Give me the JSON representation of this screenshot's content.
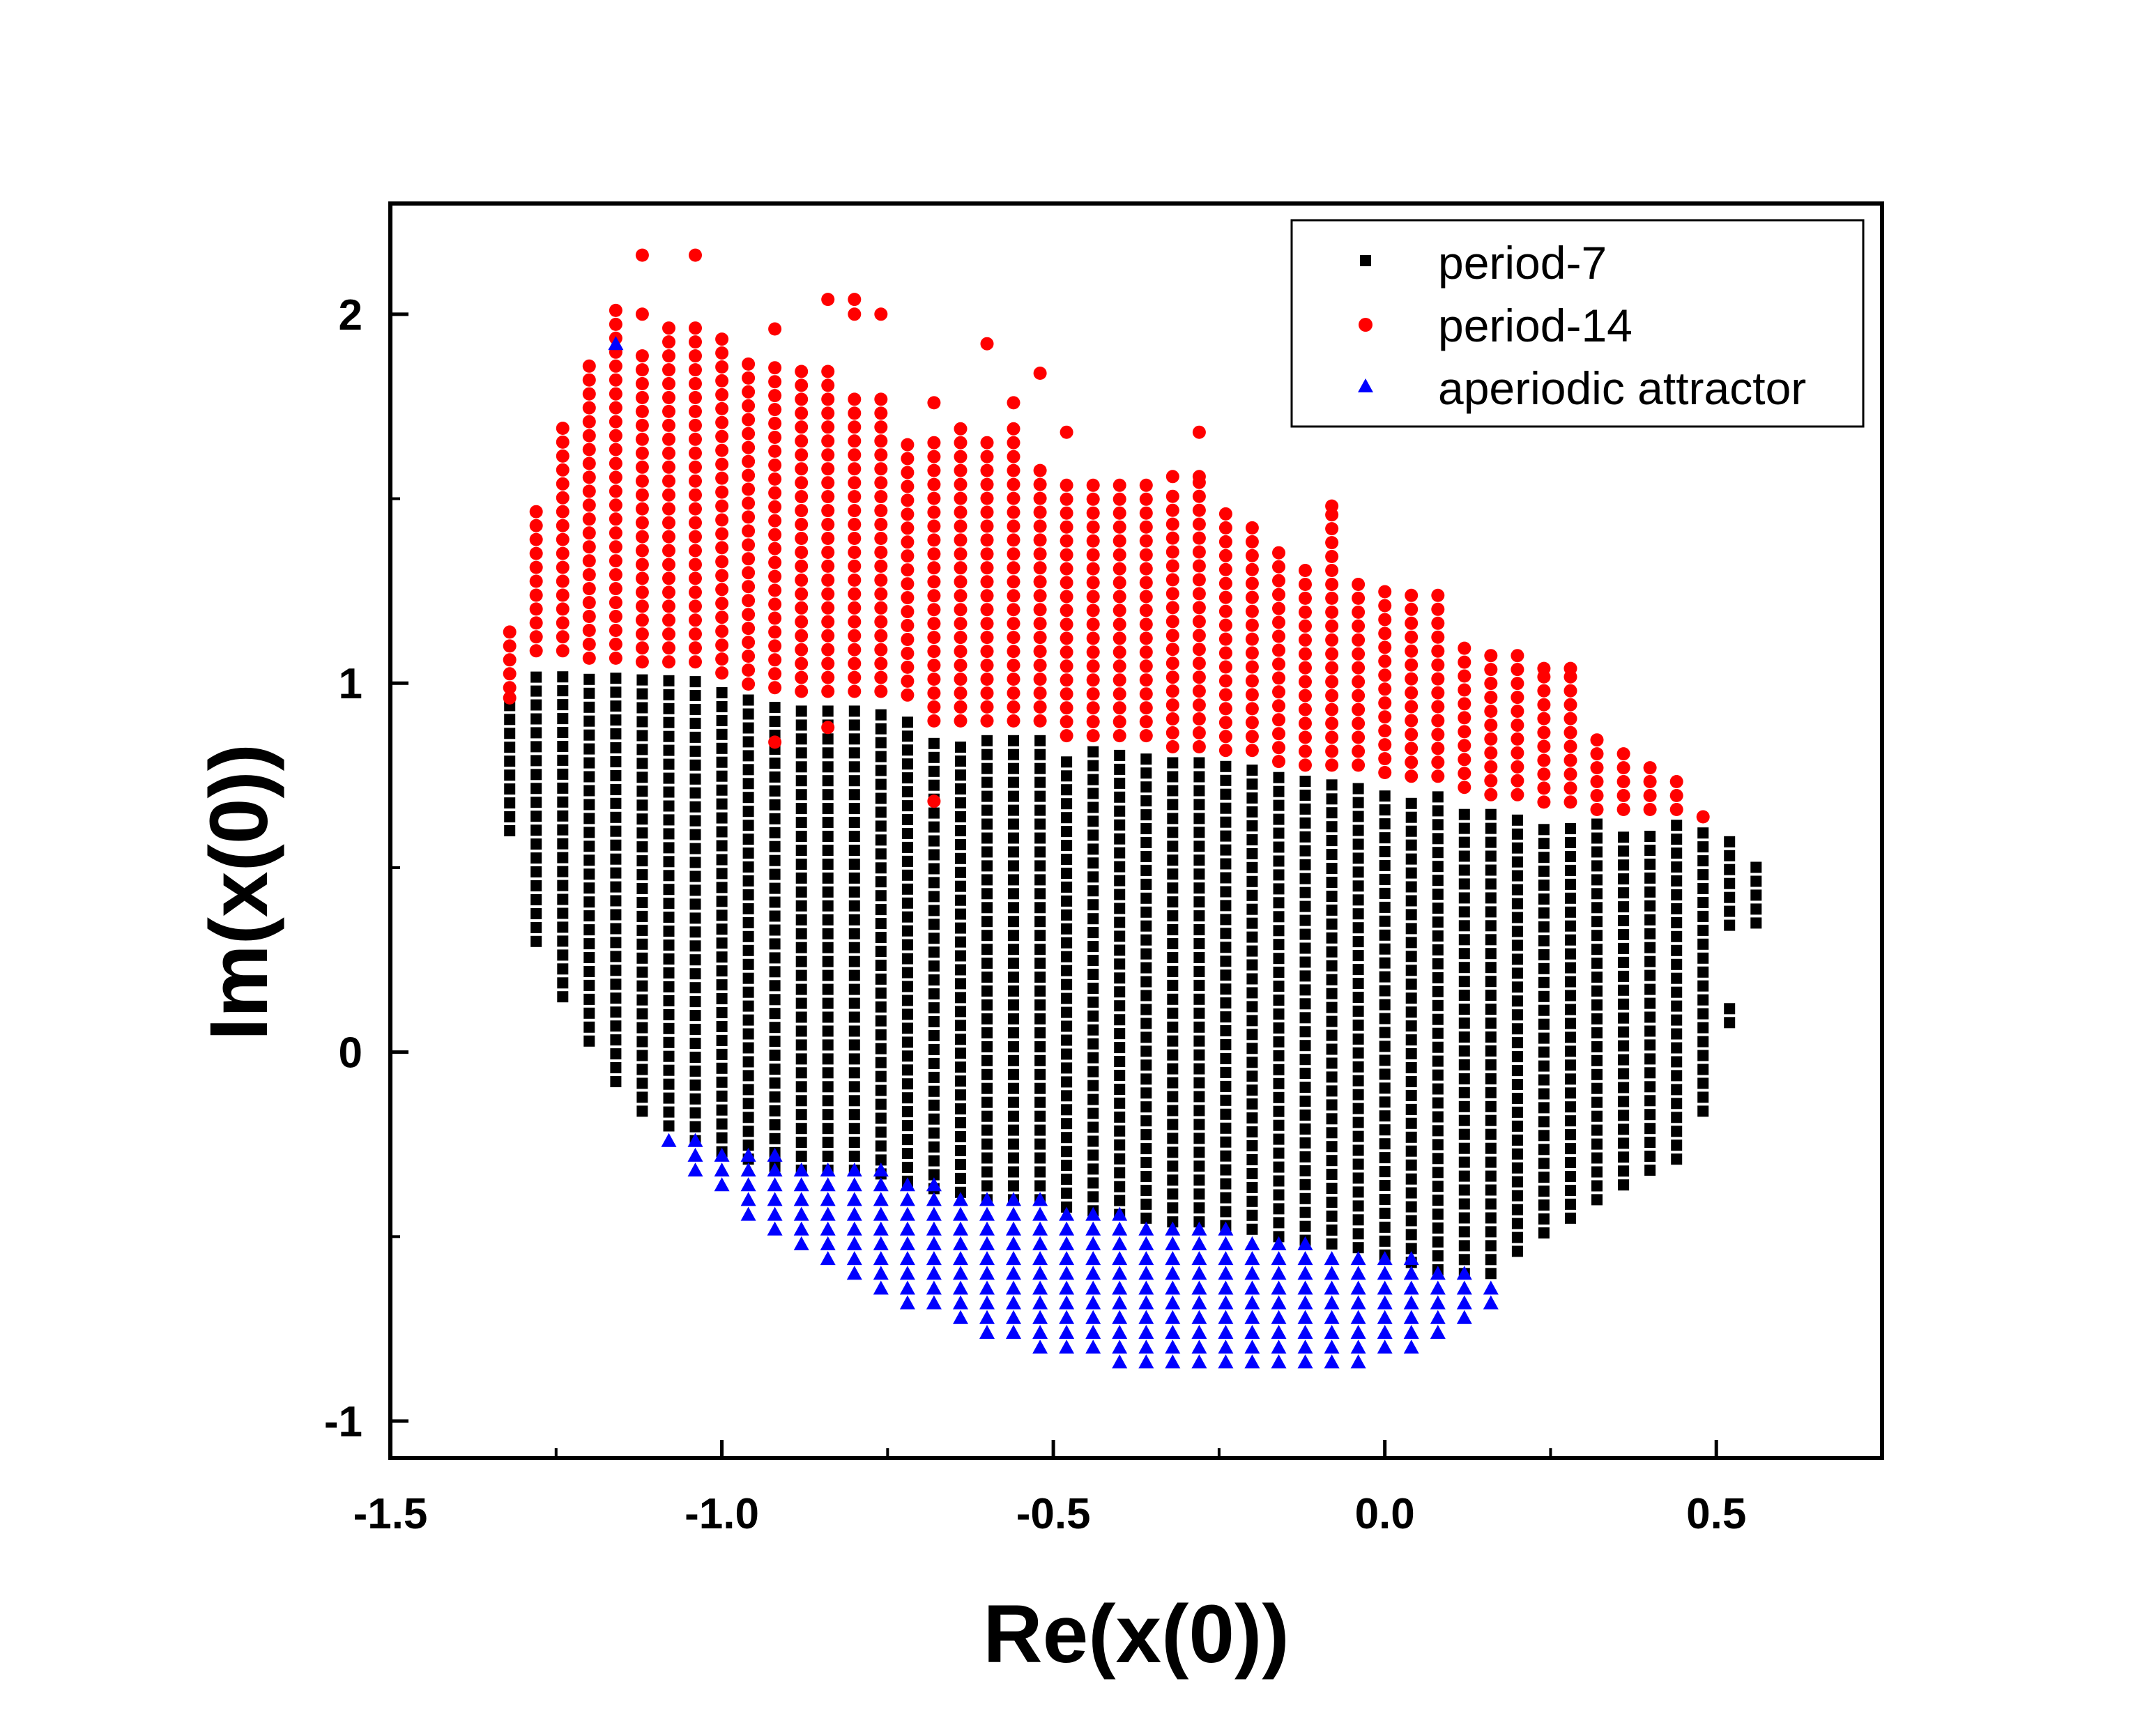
{
  "chart_data": {
    "type": "scatter",
    "title": "",
    "xlabel": "Re(x(0))",
    "ylabel": "Im(x(0))",
    "xlim": [
      -1.5,
      0.75
    ],
    "ylim": [
      -1.1,
      2.3
    ],
    "xticks": [
      -1.5,
      -1.0,
      -0.5,
      0.0,
      0.5
    ],
    "xtick_labels": [
      "-1.5",
      "-1.0",
      "-0.5",
      "0.0",
      "0.5"
    ],
    "yticks": [
      -1,
      0,
      1,
      2
    ],
    "ytick_labels": [
      "-1",
      "0",
      "1",
      "2"
    ],
    "grid": false,
    "legend_position": "top-right",
    "grid_step": {
      "dx": 0.04,
      "dy": 0.0377
    },
    "colors": {
      "period-7": "#000000",
      "period-14": "#ff0000",
      "aperiodic attractor": "#0000ff"
    },
    "series": [
      {
        "name": "period-7",
        "marker": "square"
      },
      {
        "name": "period-14",
        "marker": "circle"
      },
      {
        "name": "aperiodic attractor",
        "marker": "triangle"
      }
    ],
    "columns": [
      [
        -1.32,
        0.6,
        0.95,
        1.17
      ],
      [
        -1.28,
        0.3,
        1.05,
        1.48
      ],
      [
        -1.24,
        0.15,
        1.05,
        1.72
      ],
      [
        -1.2,
        0.03,
        1.03,
        1.88
      ],
      [
        -1.16,
        -0.08,
        1.03,
        2.04
      ],
      [
        -1.12,
        -0.16,
        1.02,
        1.92
      ],
      [
        -1.08,
        -0.2,
        1.02,
        1.97
      ],
      [
        -1.04,
        -0.24,
        1.02,
        1.97
      ],
      [
        -1.0,
        -0.27,
        0.99,
        1.96
      ],
      [
        -0.96,
        -0.29,
        0.96,
        1.88
      ],
      [
        -0.92,
        -0.31,
        0.95,
        1.87
      ],
      [
        -0.88,
        -0.32,
        0.94,
        1.85
      ],
      [
        -0.84,
        -0.32,
        0.94,
        1.88
      ],
      [
        -0.8,
        -0.32,
        0.94,
        1.78
      ],
      [
        -0.76,
        -0.33,
        0.94,
        1.78
      ],
      [
        -0.72,
        -0.35,
        0.93,
        1.68
      ],
      [
        -0.68,
        -0.37,
        0.86,
        1.66
      ],
      [
        -0.64,
        -0.38,
        0.86,
        1.7
      ],
      [
        -0.6,
        -0.4,
        0.86,
        1.66
      ],
      [
        -0.56,
        -0.4,
        0.86,
        1.72
      ],
      [
        -0.52,
        -0.4,
        0.86,
        1.6
      ],
      [
        -0.48,
        -0.42,
        0.82,
        1.57
      ],
      [
        -0.44,
        -0.43,
        0.82,
        1.57
      ],
      [
        -0.4,
        -0.44,
        0.82,
        1.57
      ],
      [
        -0.36,
        -0.45,
        0.82,
        1.57
      ],
      [
        -0.32,
        -0.46,
        0.79,
        1.54
      ],
      [
        -0.28,
        -0.46,
        0.79,
        1.56
      ],
      [
        -0.24,
        -0.47,
        0.78,
        1.46
      ],
      [
        -0.2,
        -0.48,
        0.78,
        1.44
      ],
      [
        -0.16,
        -0.5,
        0.75,
        1.38
      ],
      [
        -0.12,
        -0.51,
        0.74,
        1.34
      ],
      [
        -0.08,
        -0.52,
        0.74,
        1.48
      ],
      [
        -0.04,
        -0.53,
        0.74,
        1.28
      ],
      [
        0.0,
        -0.55,
        0.72,
        1.25
      ],
      [
        0.04,
        -0.57,
        0.71,
        1.25
      ],
      [
        0.08,
        -0.59,
        0.71,
        1.25
      ],
      [
        0.12,
        -0.6,
        0.68,
        1.1
      ],
      [
        0.16,
        -0.6,
        0.66,
        1.1
      ],
      [
        0.2,
        -0.54,
        0.66,
        1.08
      ],
      [
        0.24,
        -0.49,
        0.64,
        1.03
      ],
      [
        0.28,
        -0.45,
        0.64,
        1.04
      ],
      [
        0.32,
        -0.4,
        0.62,
        0.86
      ],
      [
        0.36,
        -0.36,
        0.62,
        0.82
      ],
      [
        0.4,
        -0.32,
        0.62,
        0.78
      ],
      [
        0.44,
        -0.29,
        0.62,
        0.76
      ],
      [
        0.48,
        -0.16,
        0.6,
        0.65
      ],
      [
        0.52,
        0.08,
        0.6,
        0.6
      ],
      [
        0.56,
        0.35,
        0.51,
        0.51
      ]
    ],
    "column_gaps": [
      [
        -1.28,
        0.59,
        0.62
      ],
      [
        0.52,
        0.34,
        0.14
      ]
    ],
    "aperiodic_columns": [
      [
        -1.08,
        -0.24,
        -0.24
      ],
      [
        -1.04,
        -0.32,
        -0.24
      ],
      [
        -1.0,
        -0.36,
        -0.28
      ],
      [
        -0.96,
        -0.44,
        -0.28
      ],
      [
        -0.92,
        -0.48,
        -0.28
      ],
      [
        -0.88,
        -0.52,
        -0.32
      ],
      [
        -0.84,
        -0.56,
        -0.32
      ],
      [
        -0.8,
        -0.6,
        -0.32
      ],
      [
        -0.76,
        -0.64,
        -0.32
      ],
      [
        -0.72,
        -0.68,
        -0.36
      ],
      [
        -0.68,
        -0.68,
        -0.36
      ],
      [
        -0.64,
        -0.72,
        -0.4
      ],
      [
        -0.6,
        -0.76,
        -0.4
      ],
      [
        -0.56,
        -0.76,
        -0.4
      ],
      [
        -0.52,
        -0.8,
        -0.4
      ],
      [
        -0.48,
        -0.8,
        -0.44
      ],
      [
        -0.44,
        -0.8,
        -0.44
      ],
      [
        -0.4,
        -0.84,
        -0.44
      ],
      [
        -0.36,
        -0.84,
        -0.48
      ],
      [
        -0.32,
        -0.84,
        -0.48
      ],
      [
        -0.28,
        -0.84,
        -0.48
      ],
      [
        -0.24,
        -0.84,
        -0.48
      ],
      [
        -0.2,
        -0.84,
        -0.52
      ],
      [
        -0.16,
        -0.84,
        -0.52
      ],
      [
        -0.12,
        -0.84,
        -0.52
      ],
      [
        -0.08,
        -0.84,
        -0.56
      ],
      [
        -0.04,
        -0.84,
        -0.56
      ],
      [
        0.0,
        -0.8,
        -0.56
      ],
      [
        0.04,
        -0.8,
        -0.56
      ],
      [
        0.08,
        -0.76,
        -0.6
      ],
      [
        0.12,
        -0.72,
        -0.6
      ],
      [
        0.16,
        -0.68,
        -0.64
      ]
    ],
    "outliers": {
      "period-7": [],
      "period-14": [
        [
          -1.32,
          0.96
        ],
        [
          -1.12,
          2.16
        ],
        [
          -1.04,
          2.16
        ],
        [
          -1.12,
          2.0
        ],
        [
          -0.84,
          2.04
        ],
        [
          -0.8,
          2.04
        ],
        [
          -0.8,
          2.0
        ],
        [
          -0.76,
          2.0
        ],
        [
          -0.92,
          1.96
        ],
        [
          -0.6,
          1.92
        ],
        [
          -0.52,
          1.84
        ],
        [
          -0.68,
          1.76
        ],
        [
          -0.56,
          1.76
        ],
        [
          -0.48,
          1.68
        ],
        [
          -0.28,
          1.68
        ],
        [
          -0.32,
          1.56
        ],
        [
          -0.28,
          1.56
        ],
        [
          -0.08,
          1.48
        ],
        [
          -0.92,
          0.84
        ],
        [
          -0.84,
          0.88
        ],
        [
          -0.68,
          0.68
        ],
        [
          0.24,
          1.04
        ],
        [
          0.28,
          1.04
        ]
      ],
      "aperiodic attractor": [
        [
          -1.16,
          1.92
        ]
      ]
    }
  },
  "legend": {
    "items": [
      {
        "label": "period-7",
        "marker": "square",
        "color": "#000000"
      },
      {
        "label": "period-14",
        "marker": "circle",
        "color": "#ff0000"
      },
      {
        "label": "aperiodic attractor",
        "marker": "triangle",
        "color": "#0000ff"
      }
    ]
  }
}
